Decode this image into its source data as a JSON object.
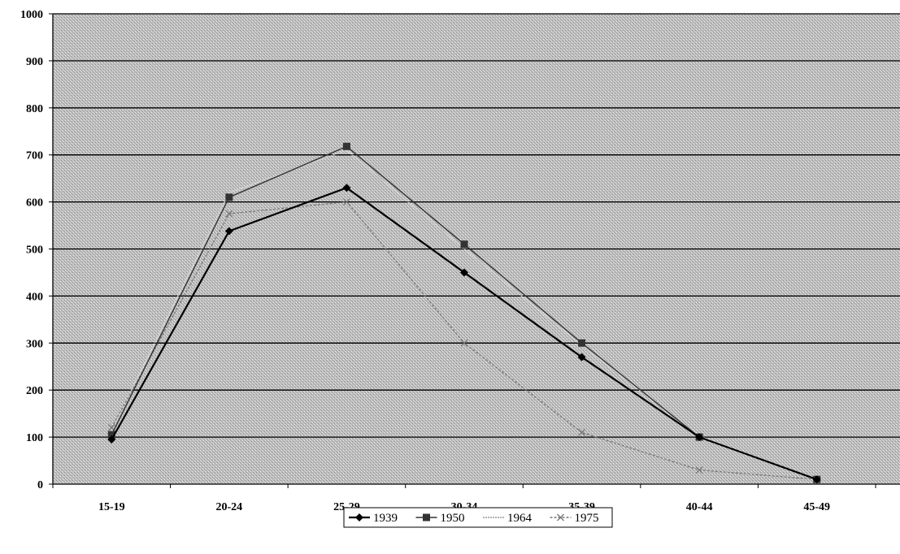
{
  "chart_data": {
    "type": "line",
    "categories": [
      "15-19",
      "20-24",
      "25-29",
      "30-34",
      "35-39",
      "40-44",
      "45-49"
    ],
    "ylim": [
      0,
      1000
    ],
    "yticks": [
      0,
      100,
      200,
      300,
      400,
      500,
      600,
      700,
      800,
      900,
      1000
    ],
    "grid": true,
    "legend_position": "bottom",
    "series": [
      {
        "name": "1939",
        "values": [
          95,
          538,
          630,
          450,
          270,
          100,
          10
        ],
        "color": "#000000",
        "marker": "diamond"
      },
      {
        "name": "1950",
        "values": [
          105,
          610,
          718,
          510,
          300,
          100,
          10
        ],
        "color": "#333333",
        "marker": "square"
      },
      {
        "name": "1964",
        "values": [
          115,
          620,
          710,
          500,
          295,
          102,
          10
        ],
        "color": "#d8d8d8",
        "marker": "none"
      },
      {
        "name": "1975",
        "values": [
          120,
          575,
          600,
          300,
          110,
          30,
          10
        ],
        "color": "#777777",
        "marker": "x"
      }
    ]
  }
}
